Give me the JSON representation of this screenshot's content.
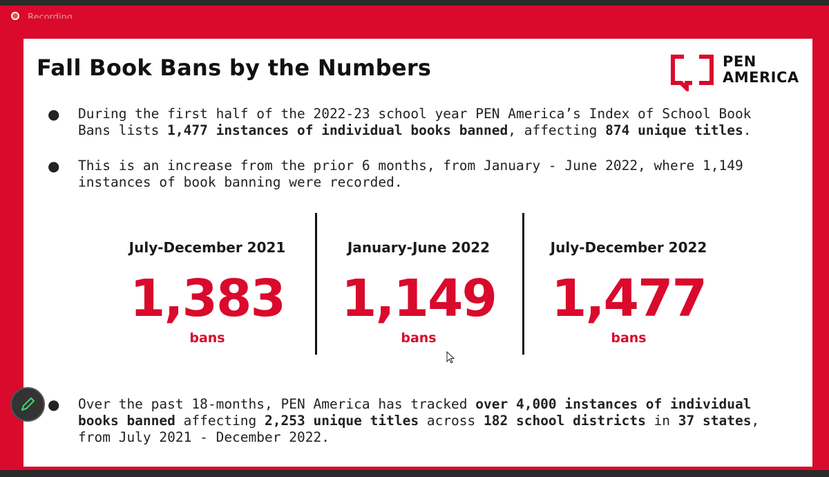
{
  "recording": {
    "label": "Recording"
  },
  "slide": {
    "title": "Fall Book Bans by the Numbers",
    "logo": {
      "line1": "PEN",
      "line2": "AMERICA"
    },
    "bullets": [
      {
        "parts": [
          {
            "text": "During the first half of the 2022-23 school year PEN America’s Index of School Book Bans lists ",
            "bold": false
          },
          {
            "text": "1,477 instances of individual books banned",
            "bold": true
          },
          {
            "text": ", affecting ",
            "bold": false
          },
          {
            "text": "874 unique titles",
            "bold": true
          },
          {
            "text": ".",
            "bold": false
          }
        ]
      },
      {
        "parts": [
          {
            "text": "This is an increase from the prior 6 months, from January - June 2022, where 1,149 instances of book banning were recorded.",
            "bold": false
          }
        ]
      },
      {
        "parts": [
          {
            "text": "Over the past 18-months, PEN America has tracked ",
            "bold": false
          },
          {
            "text": "over 4,000 instances of individual books banned",
            "bold": true
          },
          {
            "text": " affecting ",
            "bold": false
          },
          {
            "text": "2,253 unique titles",
            "bold": true
          },
          {
            "text": " across ",
            "bold": false
          },
          {
            "text": "182 school districts",
            "bold": true
          },
          {
            "text": " in ",
            "bold": false
          },
          {
            "text": "37 states",
            "bold": true
          },
          {
            "text": ", from July 2021 - December 2022.",
            "bold": false
          }
        ]
      }
    ],
    "stats": [
      {
        "period": "July-December 2021",
        "value": "1,383",
        "unit": "bans"
      },
      {
        "period": "January-June 2022",
        "value": "1,149",
        "unit": "bans"
      },
      {
        "period": "July-December 2022",
        "value": "1,477",
        "unit": "bans"
      }
    ]
  },
  "colors": {
    "accent": "#d90a2c",
    "frame": "#d90a2c",
    "text": "#222222"
  },
  "icons": {
    "recording": "record-dot-icon",
    "pen": "pencil-icon",
    "cursor": "mouse-pointer-icon"
  }
}
